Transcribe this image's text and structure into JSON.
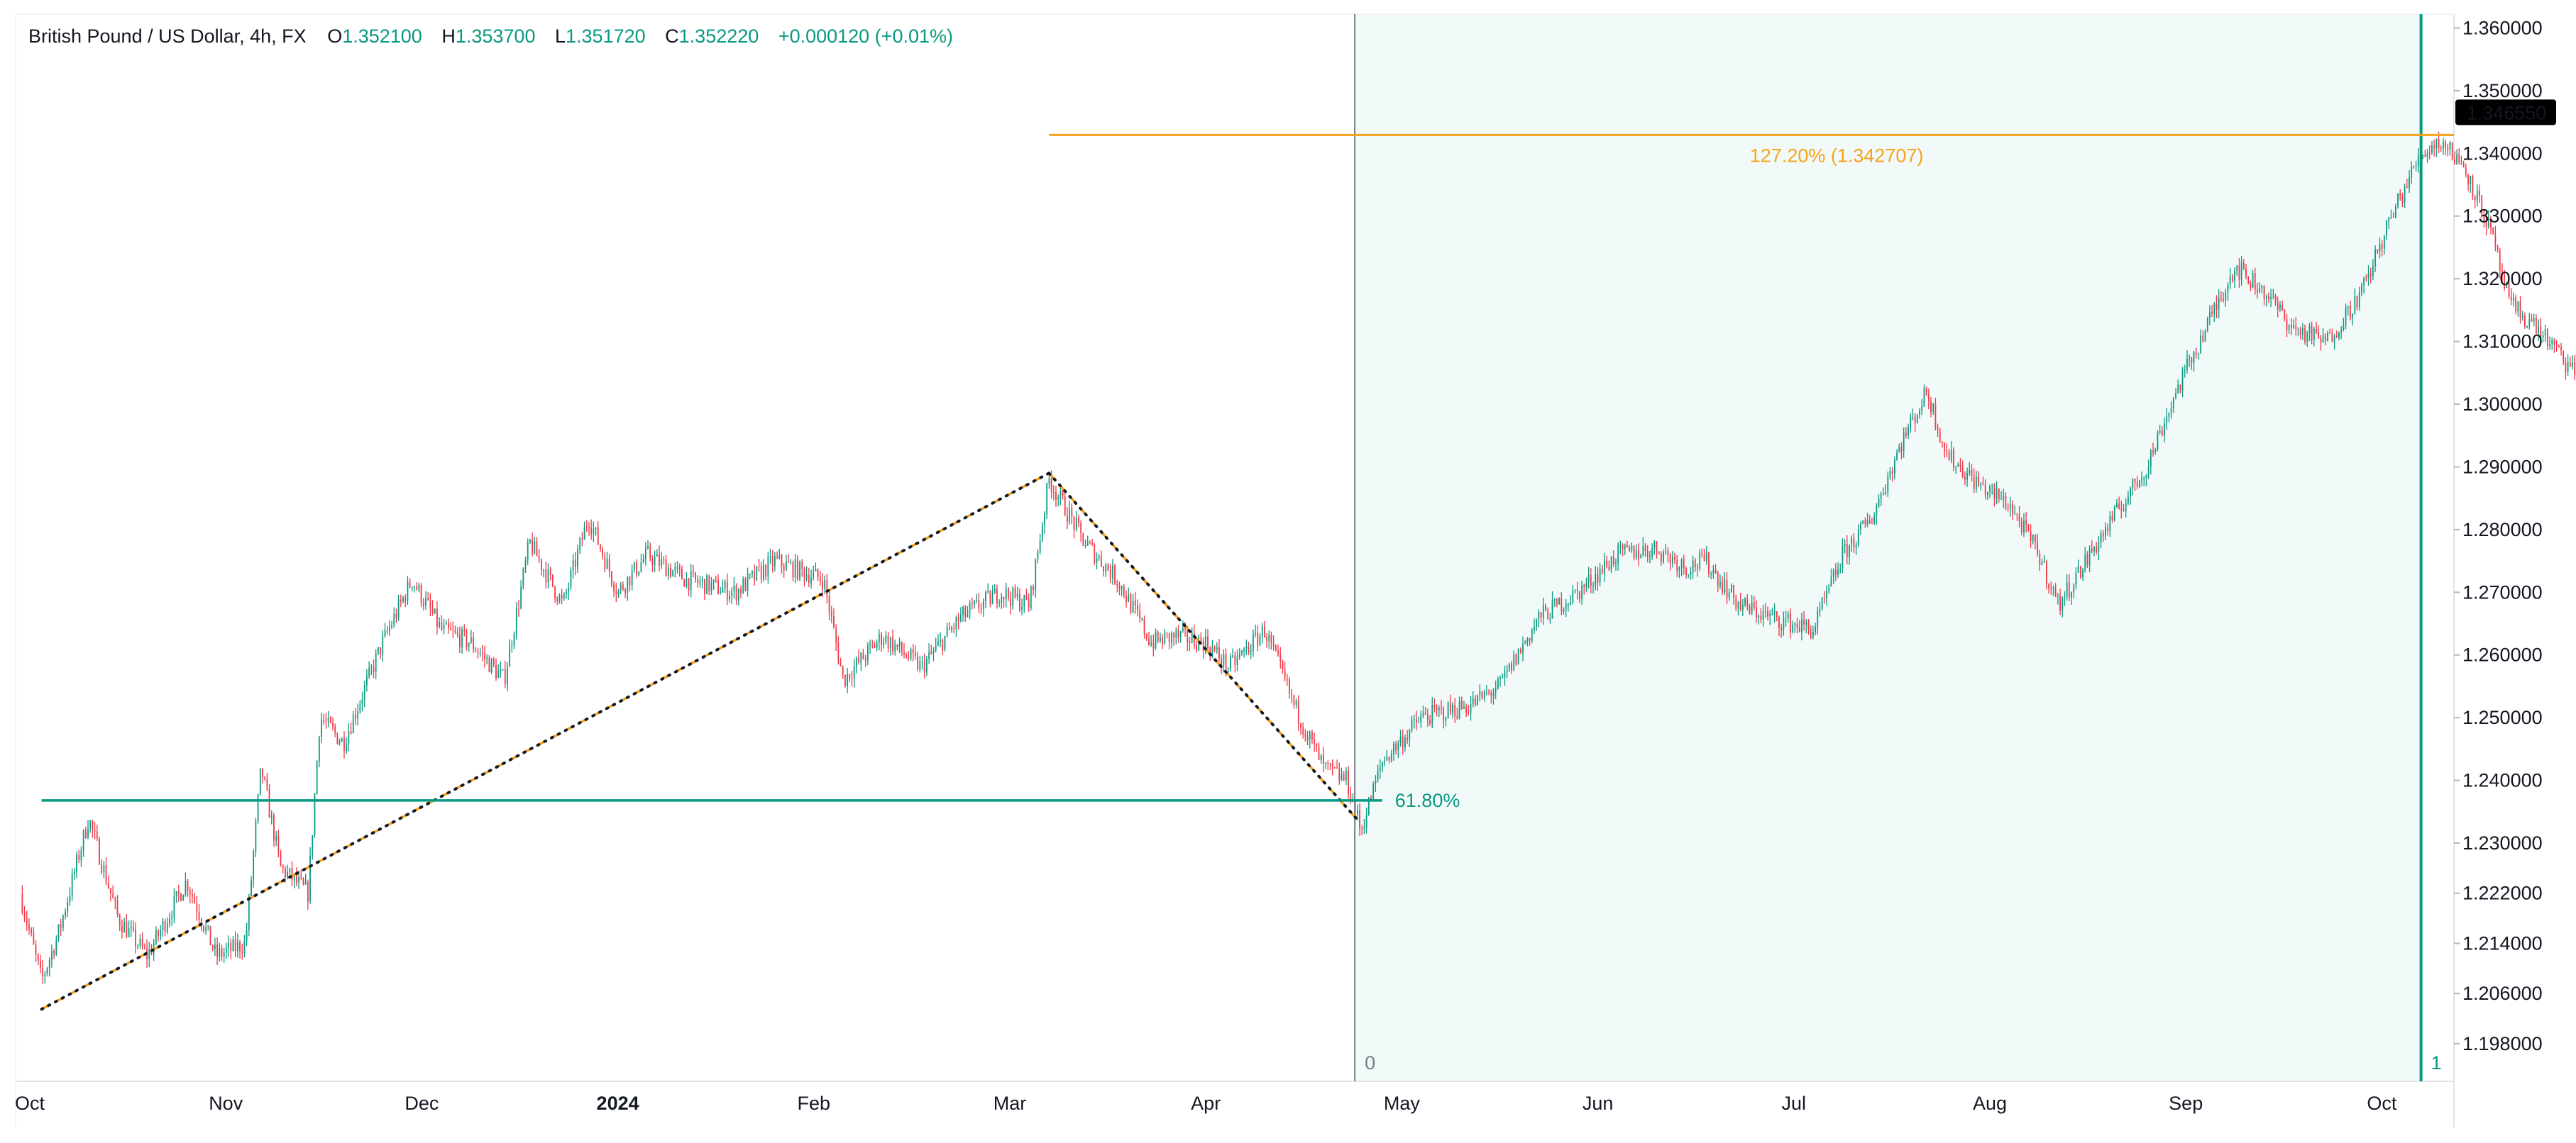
{
  "header": {
    "symbol": "British Pound / US Dollar, 4h, FX",
    "open_label": "O",
    "open": "1.352100",
    "high_label": "H",
    "high": "1.353700",
    "low_label": "L",
    "low": "1.351720",
    "close_label": "C",
    "close": "1.352220",
    "change": "+0.000120 (+0.01%)"
  },
  "colors": {
    "up": "#089981",
    "down": "#f23645",
    "fib_extension": "#f7a21b",
    "fib_retrace": "#089981",
    "highlight": "#f2faf9",
    "price_tag": "#000000"
  },
  "chart_data": {
    "type": "candlestick",
    "timeframe": "4h",
    "ylim": [
      1.192,
      1.3622
    ],
    "y_ticks": [
      "1.360000",
      "1.350000",
      "1.340000",
      "1.330000",
      "1.320000",
      "1.310000",
      "1.300000",
      "1.290000",
      "1.280000",
      "1.270000",
      "1.260000",
      "1.250000",
      "1.240000",
      "1.230000",
      "1.222000",
      "1.214000",
      "1.206000",
      "1.198000"
    ],
    "x_ticks": [
      {
        "label": "Oct",
        "t": 0.0,
        "bold": false
      },
      {
        "label": "Nov",
        "t": 1.0,
        "bold": false
      },
      {
        "label": "Dec",
        "t": 2.0,
        "bold": false
      },
      {
        "label": "2024",
        "t": 3.0,
        "bold": true
      },
      {
        "label": "Feb",
        "t": 4.0,
        "bold": false
      },
      {
        "label": "Mar",
        "t": 5.0,
        "bold": false
      },
      {
        "label": "Apr",
        "t": 6.0,
        "bold": false
      },
      {
        "label": "May",
        "t": 7.0,
        "bold": false
      },
      {
        "label": "Jun",
        "t": 8.0,
        "bold": false
      },
      {
        "label": "Jul",
        "t": 9.0,
        "bold": false
      },
      {
        "label": "Aug",
        "t": 10.0,
        "bold": false
      },
      {
        "label": "Sep",
        "t": 11.0,
        "bold": false
      },
      {
        "label": "Oct",
        "t": 12.0,
        "bold": false
      }
    ],
    "path": [
      [
        -0.05,
        1.222
      ],
      [
        0.06,
        1.208
      ],
      [
        0.15,
        1.216
      ],
      [
        0.3,
        1.234
      ],
      [
        0.45,
        1.218
      ],
      [
        0.6,
        1.212
      ],
      [
        0.8,
        1.224
      ],
      [
        0.95,
        1.212
      ],
      [
        1.1,
        1.214
      ],
      [
        1.18,
        1.242
      ],
      [
        1.28,
        1.226
      ],
      [
        1.42,
        1.222
      ],
      [
        1.48,
        1.25
      ],
      [
        1.6,
        1.246
      ],
      [
        1.8,
        1.262
      ],
      [
        1.95,
        1.272
      ],
      [
        2.1,
        1.264
      ],
      [
        2.25,
        1.262
      ],
      [
        2.42,
        1.256
      ],
      [
        2.55,
        1.278
      ],
      [
        2.72,
        1.268
      ],
      [
        2.85,
        1.282
      ],
      [
        3.0,
        1.27
      ],
      [
        3.15,
        1.276
      ],
      [
        3.35,
        1.272
      ],
      [
        3.6,
        1.27
      ],
      [
        3.8,
        1.275
      ],
      [
        4.05,
        1.272
      ],
      [
        4.15,
        1.256
      ],
      [
        4.35,
        1.263
      ],
      [
        4.55,
        1.258
      ],
      [
        4.75,
        1.266
      ],
      [
        4.95,
        1.27
      ],
      [
        5.1,
        1.268
      ],
      [
        5.2,
        1.288
      ],
      [
        5.38,
        1.278
      ],
      [
        5.55,
        1.272
      ],
      [
        5.72,
        1.262
      ],
      [
        5.85,
        1.263
      ],
      [
        6.0,
        1.262
      ],
      [
        6.12,
        1.258
      ],
      [
        6.3,
        1.264
      ],
      [
        6.45,
        1.252
      ],
      [
        6.6,
        1.242
      ],
      [
        6.72,
        1.24
      ],
      [
        6.79,
        1.232
      ],
      [
        6.9,
        1.243
      ],
      [
        7.1,
        1.25
      ],
      [
        7.35,
        1.252
      ],
      [
        7.5,
        1.255
      ],
      [
        7.7,
        1.266
      ],
      [
        7.9,
        1.27
      ],
      [
        8.1,
        1.276
      ],
      [
        8.3,
        1.277
      ],
      [
        8.45,
        1.274
      ],
      [
        8.55,
        1.275
      ],
      [
        8.72,
        1.268
      ],
      [
        8.88,
        1.266
      ],
      [
        9.1,
        1.264
      ],
      [
        9.25,
        1.276
      ],
      [
        9.4,
        1.282
      ],
      [
        9.55,
        1.294
      ],
      [
        9.68,
        1.302
      ],
      [
        9.78,
        1.292
      ],
      [
        9.95,
        1.287
      ],
      [
        10.1,
        1.284
      ],
      [
        10.25,
        1.276
      ],
      [
        10.35,
        1.268
      ],
      [
        10.55,
        1.278
      ],
      [
        10.8,
        1.29
      ],
      [
        10.95,
        1.302
      ],
      [
        11.1,
        1.312
      ],
      [
        11.25,
        1.322
      ],
      [
        11.4,
        1.318
      ],
      [
        11.55,
        1.312
      ],
      [
        11.72,
        1.31
      ],
      [
        11.9,
        1.318
      ],
      [
        12.05,
        1.33
      ],
      [
        12.2,
        1.34
      ],
      [
        12.3,
        1.342
      ],
      [
        12.42,
        1.338
      ],
      [
        12.55,
        1.328
      ],
      [
        12.65,
        1.316
      ],
      [
        12.8,
        1.312
      ],
      [
        12.95,
        1.306
      ],
      [
        13.1,
        1.302
      ],
      [
        13.25,
        1.3
      ]
    ],
    "fib_retrace": {
      "level_label": "61.80%",
      "level": 1.2368
    },
    "fib_extension": {
      "level_label": "127.20% (1.342707)",
      "level": 1.342707
    },
    "time_zone": {
      "start_label": "0",
      "end_label": "1",
      "start_t": 6.76,
      "end_t": 12.2
    },
    "last_price": "1.346550"
  }
}
